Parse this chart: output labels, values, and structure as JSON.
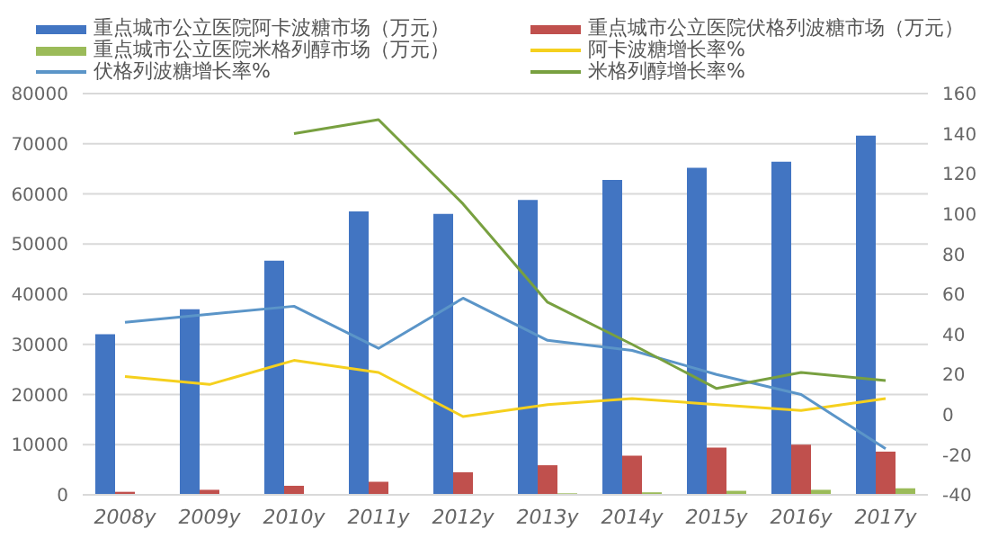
{
  "chart_data": {
    "type": "bar",
    "categories": [
      "2008y",
      "2009y",
      "2010y",
      "2011y",
      "2012y",
      "2013y",
      "2014y",
      "2015y",
      "2016y",
      "2017y"
    ],
    "series": [
      {
        "name": "重点城市公立医院阿卡波糖市场（万元）",
        "color": "#4275c2",
        "values": [
          32000,
          37000,
          46700,
          56500,
          56000,
          58800,
          62800,
          65200,
          66400,
          71600
        ]
      },
      {
        "name": "重点城市公立医院伏格列波糖市场（万元）",
        "color": "#c0504d",
        "values": [
          600,
          1000,
          1800,
          2600,
          4500,
          5900,
          7800,
          9400,
          10000,
          8600
        ]
      },
      {
        "name": "重点城市公立医院米格列醇市场（万元）",
        "color": "#9bbb59",
        "values": [
          null,
          null,
          null,
          null,
          null,
          300,
          500,
          800,
          1000,
          1300
        ]
      },
      {
        "name": "阿卡波糖增长率%",
        "type": "line",
        "axis": "y2",
        "color": "#f5d01e",
        "values": [
          19,
          15,
          27,
          21,
          -1,
          5,
          8,
          5,
          2,
          8
        ]
      },
      {
        "name": "伏格列波糖增长率%",
        "type": "line",
        "axis": "y2",
        "color": "#5b95c8",
        "values": [
          46,
          50,
          54,
          33,
          58,
          37,
          32,
          20,
          10,
          -17
        ]
      },
      {
        "name": "米格列醇增长率%",
        "type": "line",
        "axis": "y2",
        "color": "#78a040",
        "values": [
          null,
          null,
          140,
          147,
          105,
          56,
          35,
          13,
          21,
          17
        ]
      }
    ],
    "ylim": [
      0,
      80000
    ],
    "yticks": [
      0,
      10000,
      20000,
      30000,
      40000,
      50000,
      60000,
      70000,
      80000
    ],
    "y2lim": [
      -40,
      160
    ],
    "y2ticks": [
      -40,
      -20,
      0,
      20,
      40,
      60,
      80,
      100,
      120,
      140,
      160
    ],
    "grid": "y",
    "legend": "top",
    "marker": "none",
    "line_style": "solid"
  }
}
